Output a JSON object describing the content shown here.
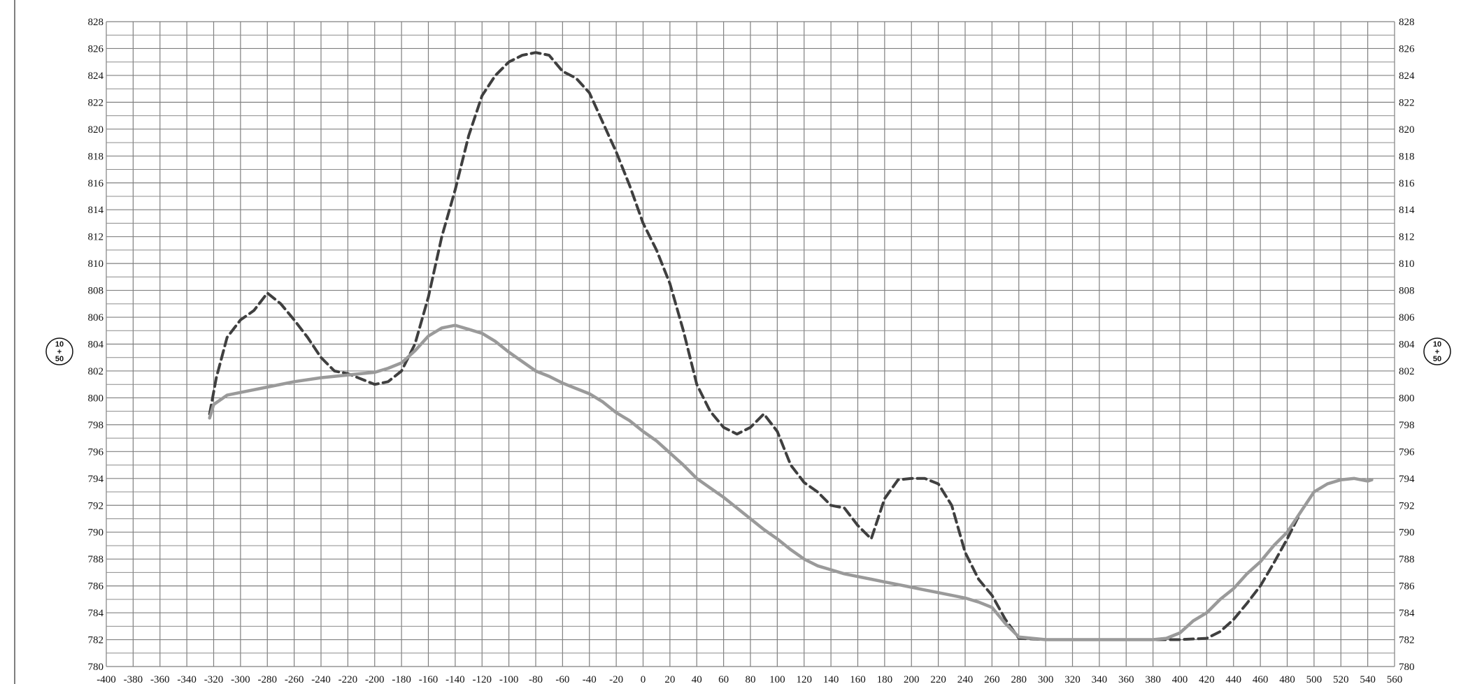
{
  "chart_data": {
    "type": "line",
    "title": "",
    "xlabel": "",
    "ylabel": "",
    "xlim": [
      -400,
      560
    ],
    "ylim": [
      780,
      828
    ],
    "x_ticks": [
      -400,
      -380,
      -360,
      -340,
      -320,
      -300,
      -280,
      -260,
      -240,
      -220,
      -200,
      -180,
      -160,
      -140,
      -120,
      -100,
      -80,
      -60,
      -40,
      -20,
      0,
      20,
      40,
      60,
      80,
      100,
      120,
      140,
      160,
      180,
      200,
      220,
      240,
      260,
      280,
      300,
      320,
      340,
      360,
      380,
      400,
      420,
      440,
      460,
      480,
      500,
      520,
      540,
      560
    ],
    "y_ticks": [
      780,
      782,
      784,
      786,
      788,
      790,
      792,
      794,
      796,
      798,
      800,
      802,
      804,
      806,
      808,
      810,
      812,
      814,
      816,
      818,
      820,
      822,
      824,
      826,
      828
    ],
    "grid": true,
    "station_marker": {
      "top": "10",
      "middle": "+",
      "bottom": "50"
    },
    "series": [
      {
        "style": "dashed",
        "color": "#3f3f3f",
        "points": [
          [
            -323,
            798.8
          ],
          [
            -318,
            801.5
          ],
          [
            -310,
            804.5
          ],
          [
            -300,
            805.8
          ],
          [
            -290,
            806.5
          ],
          [
            -280,
            807.8
          ],
          [
            -270,
            807
          ],
          [
            -260,
            805.8
          ],
          [
            -250,
            804.5
          ],
          [
            -240,
            803
          ],
          [
            -230,
            802
          ],
          [
            -220,
            801.8
          ],
          [
            -210,
            801.4
          ],
          [
            -200,
            801
          ],
          [
            -190,
            801.2
          ],
          [
            -180,
            802
          ],
          [
            -170,
            804
          ],
          [
            -160,
            807.5
          ],
          [
            -150,
            812
          ],
          [
            -140,
            815.5
          ],
          [
            -130,
            819.5
          ],
          [
            -120,
            822.5
          ],
          [
            -110,
            824
          ],
          [
            -100,
            825
          ],
          [
            -90,
            825.5
          ],
          [
            -80,
            825.7
          ],
          [
            -70,
            825.5
          ],
          [
            -60,
            824.3
          ],
          [
            -50,
            823.8
          ],
          [
            -40,
            822.7
          ],
          [
            -30,
            820.5
          ],
          [
            -20,
            818.3
          ],
          [
            -10,
            815.8
          ],
          [
            0,
            813
          ],
          [
            10,
            811
          ],
          [
            20,
            808.5
          ],
          [
            30,
            805
          ],
          [
            40,
            801
          ],
          [
            50,
            799
          ],
          [
            60,
            797.8
          ],
          [
            70,
            797.3
          ],
          [
            80,
            797.8
          ],
          [
            90,
            798.8
          ],
          [
            100,
            797.5
          ],
          [
            110,
            795
          ],
          [
            120,
            793.7
          ],
          [
            130,
            793
          ],
          [
            140,
            792
          ],
          [
            150,
            791.8
          ],
          [
            160,
            790.5
          ],
          [
            170,
            789.5
          ],
          [
            180,
            792.5
          ],
          [
            190,
            793.9
          ],
          [
            200,
            794
          ],
          [
            210,
            794
          ],
          [
            220,
            793.6
          ],
          [
            230,
            792
          ],
          [
            240,
            788.5
          ],
          [
            250,
            786.5
          ],
          [
            260,
            785.3
          ],
          [
            270,
            783.5
          ],
          [
            280,
            782.1
          ],
          [
            300,
            782
          ],
          [
            350,
            782
          ],
          [
            400,
            782
          ],
          [
            420,
            782.1
          ],
          [
            430,
            782.6
          ],
          [
            440,
            783.5
          ],
          [
            450,
            784.7
          ],
          [
            460,
            786
          ],
          [
            470,
            787.7
          ],
          [
            480,
            789.5
          ],
          [
            490,
            791.5
          ]
        ]
      },
      {
        "style": "solid",
        "color": "#9a9a9a",
        "points": [
          [
            -323,
            798.5
          ],
          [
            -320,
            799.5
          ],
          [
            -310,
            800.2
          ],
          [
            -300,
            800.4
          ],
          [
            -280,
            800.8
          ],
          [
            -260,
            801.2
          ],
          [
            -240,
            801.5
          ],
          [
            -220,
            801.7
          ],
          [
            -200,
            801.9
          ],
          [
            -190,
            802.2
          ],
          [
            -180,
            802.6
          ],
          [
            -170,
            803.5
          ],
          [
            -160,
            804.6
          ],
          [
            -150,
            805.2
          ],
          [
            -140,
            805.4
          ],
          [
            -130,
            805.1
          ],
          [
            -120,
            804.8
          ],
          [
            -110,
            804.2
          ],
          [
            -100,
            803.4
          ],
          [
            -90,
            802.7
          ],
          [
            -80,
            802
          ],
          [
            -70,
            801.6
          ],
          [
            -60,
            801.1
          ],
          [
            -50,
            800.7
          ],
          [
            -40,
            800.3
          ],
          [
            -30,
            799.7
          ],
          [
            -20,
            798.9
          ],
          [
            -10,
            798.3
          ],
          [
            0,
            797.5
          ],
          [
            10,
            796.8
          ],
          [
            20,
            795.9
          ],
          [
            30,
            795
          ],
          [
            40,
            794
          ],
          [
            50,
            793.3
          ],
          [
            60,
            792.6
          ],
          [
            70,
            791.8
          ],
          [
            80,
            791
          ],
          [
            90,
            790.2
          ],
          [
            100,
            789.5
          ],
          [
            110,
            788.7
          ],
          [
            120,
            788
          ],
          [
            130,
            787.5
          ],
          [
            140,
            787.2
          ],
          [
            150,
            786.9
          ],
          [
            160,
            786.7
          ],
          [
            170,
            786.5
          ],
          [
            180,
            786.3
          ],
          [
            190,
            786.1
          ],
          [
            200,
            785.9
          ],
          [
            210,
            785.7
          ],
          [
            220,
            785.5
          ],
          [
            230,
            785.3
          ],
          [
            240,
            785.1
          ],
          [
            250,
            784.8
          ],
          [
            260,
            784.4
          ],
          [
            270,
            783.2
          ],
          [
            280,
            782.2
          ],
          [
            300,
            782
          ],
          [
            350,
            782
          ],
          [
            380,
            782
          ],
          [
            390,
            782.1
          ],
          [
            400,
            782.5
          ],
          [
            410,
            783.4
          ],
          [
            420,
            784
          ],
          [
            430,
            785
          ],
          [
            440,
            785.8
          ],
          [
            450,
            786.9
          ],
          [
            460,
            787.8
          ],
          [
            470,
            789
          ],
          [
            480,
            790
          ],
          [
            490,
            791.5
          ],
          [
            500,
            793
          ],
          [
            510,
            793.6
          ],
          [
            520,
            793.9
          ],
          [
            530,
            794
          ],
          [
            540,
            793.8
          ],
          [
            543,
            793.9
          ]
        ]
      }
    ]
  }
}
